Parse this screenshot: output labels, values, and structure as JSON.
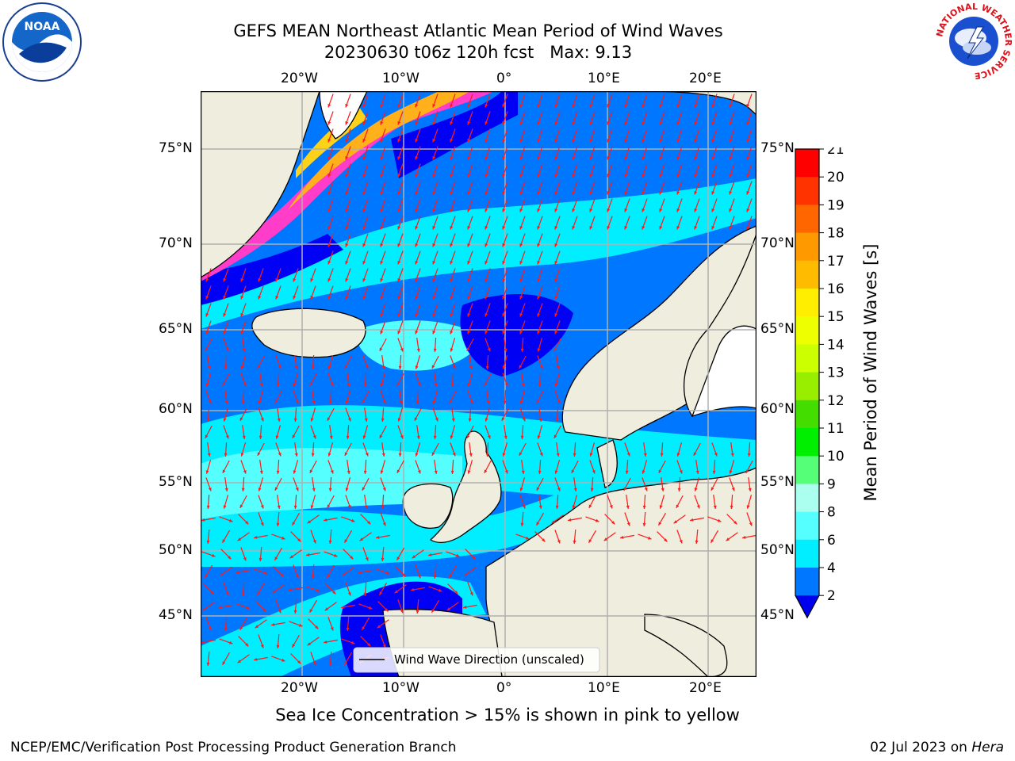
{
  "header": {
    "title_line1": "GEFS MEAN Northeast Atlantic Mean Period of Wind Waves",
    "title_line2": "20230630 t06z 120h fcst   Max: 9.13"
  },
  "logos": {
    "noaa": "NOAA",
    "nws_ring": "NATIONAL WEATHER SERVICE"
  },
  "map": {
    "lon_labels": [
      "20°W",
      "10°W",
      "0°",
      "10°E",
      "20°E"
    ],
    "lat_labels": [
      "75°N",
      "70°N",
      "65°N",
      "60°N",
      "55°N",
      "50°N",
      "45°N"
    ],
    "legend_label": "Wind Wave Direction (unscaled)",
    "colors": {
      "land": "#eeedde",
      "ocean_deep": "#0000f5",
      "arrow": "#ff1a1a",
      "ice_pink": "#ff3dc8",
      "ice_yellow": "#ffd21a"
    }
  },
  "colorbar": {
    "title": "Mean Period of Wind Waves [s]",
    "ticks": [
      "21",
      "20",
      "19",
      "18",
      "17",
      "16",
      "15",
      "14",
      "13",
      "12",
      "11",
      "10",
      "9",
      "8",
      "6",
      "4",
      "2"
    ],
    "colors": [
      "#ff0000",
      "#ff3300",
      "#ff6600",
      "#ff9900",
      "#ffbb00",
      "#ffee00",
      "#eeff00",
      "#ccff00",
      "#99ee00",
      "#44dd00",
      "#00ee00",
      "#55ff77",
      "#aaffee",
      "#55ffff",
      "#00eeff",
      "#0077ff",
      "#0000ee"
    ]
  },
  "caption": "Sea Ice Concentration > 15% is shown in pink to yellow",
  "footer": {
    "left": "NCEP/EMC/Verification Post Processing Product Generation Branch",
    "date": "02 Jul 2023 on ",
    "machine": "Hera"
  }
}
